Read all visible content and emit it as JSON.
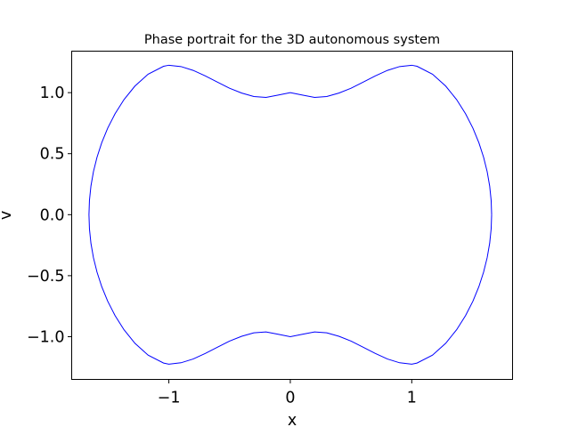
{
  "chart_data": {
    "type": "line",
    "title": "Phase portrait for the 3D autonomous system",
    "xlabel": "x",
    "ylabel": "v",
    "xlim": [
      -1.8,
      1.83
    ],
    "ylim": [
      -1.35,
      1.34
    ],
    "grid": false,
    "xticks": [
      {
        "value": -1,
        "label": "−1"
      },
      {
        "value": 0,
        "label": "0"
      },
      {
        "value": 1,
        "label": "1"
      }
    ],
    "yticks": [
      {
        "value": 1.0,
        "label": "1.0"
      },
      {
        "value": 0.5,
        "label": "0.5"
      },
      {
        "value": 0.0,
        "label": "0.0"
      },
      {
        "value": -0.5,
        "label": "−0.5"
      },
      {
        "value": -1.0,
        "label": "−1.0"
      }
    ],
    "series": [
      {
        "color": "#0000ff",
        "points": [
          [
            1.6578,
            0.0
          ],
          [
            1.6537,
            0.1173
          ],
          [
            1.6415,
            0.2348
          ],
          [
            1.6209,
            0.3527
          ],
          [
            1.5915,
            0.471
          ],
          [
            1.5527,
            0.5898
          ],
          [
            1.5036,
            0.7088
          ],
          [
            1.443,
            0.8271
          ],
          [
            1.3691,
            0.9433
          ],
          [
            1.2795,
            1.0539
          ],
          [
            1.1709,
            1.1513
          ],
          [
            1.0436,
            1.2159
          ],
          [
            1.0,
            1.2247
          ],
          [
            0.9,
            1.2137
          ],
          [
            0.8,
            1.1826
          ],
          [
            0.7,
            1.1375
          ],
          [
            0.6,
            1.086
          ],
          [
            0.5,
            1.0358
          ],
          [
            0.4,
            0.9964
          ],
          [
            0.3,
            0.9685
          ],
          [
            0.2,
            0.9612
          ],
          [
            0.1,
            0.9801
          ],
          [
            0.0,
            1.0
          ],
          [
            -0.1,
            0.9801
          ],
          [
            -0.2,
            0.9612
          ],
          [
            -0.3,
            0.9685
          ],
          [
            -0.4,
            0.9964
          ],
          [
            -0.5,
            1.0358
          ],
          [
            -0.6,
            1.086
          ],
          [
            -0.7,
            1.1375
          ],
          [
            -0.8,
            1.1826
          ],
          [
            -0.9,
            1.2137
          ],
          [
            -1.0,
            1.2247
          ],
          [
            -1.0436,
            1.2159
          ],
          [
            -1.1709,
            1.1513
          ],
          [
            -1.2795,
            1.0539
          ],
          [
            -1.3691,
            0.9433
          ],
          [
            -1.443,
            0.8271
          ],
          [
            -1.5036,
            0.7088
          ],
          [
            -1.5527,
            0.5898
          ],
          [
            -1.5915,
            0.471
          ],
          [
            -1.6209,
            0.3527
          ],
          [
            -1.6415,
            0.2348
          ],
          [
            -1.6537,
            0.1173
          ],
          [
            -1.6578,
            0.0
          ],
          [
            -1.6537,
            -0.1173
          ],
          [
            -1.6415,
            -0.2348
          ],
          [
            -1.6209,
            -0.3527
          ],
          [
            -1.5915,
            -0.471
          ],
          [
            -1.5527,
            -0.5898
          ],
          [
            -1.5036,
            -0.7088
          ],
          [
            -1.443,
            -0.8271
          ],
          [
            -1.3691,
            -0.9433
          ],
          [
            -1.2795,
            -1.0539
          ],
          [
            -1.1709,
            -1.1513
          ],
          [
            -1.0436,
            -1.2159
          ],
          [
            -1.0,
            -1.2247
          ],
          [
            -0.9,
            -1.2137
          ],
          [
            -0.8,
            -1.1826
          ],
          [
            -0.7,
            -1.1375
          ],
          [
            -0.6,
            -1.086
          ],
          [
            -0.5,
            -1.0358
          ],
          [
            -0.4,
            -0.9964
          ],
          [
            -0.3,
            -0.9685
          ],
          [
            -0.2,
            -0.9612
          ],
          [
            -0.1,
            -0.9801
          ],
          [
            0.0,
            -1.0
          ],
          [
            0.1,
            -0.9801
          ],
          [
            0.2,
            -0.9612
          ],
          [
            0.3,
            -0.9685
          ],
          [
            0.4,
            -0.9964
          ],
          [
            0.5,
            -1.0358
          ],
          [
            0.6,
            -1.086
          ],
          [
            0.7,
            -1.1375
          ],
          [
            0.8,
            -1.1826
          ],
          [
            0.9,
            -1.2137
          ],
          [
            1.0,
            -1.2247
          ],
          [
            1.0436,
            -1.2159
          ],
          [
            1.1709,
            -1.1513
          ],
          [
            1.2795,
            -1.0539
          ],
          [
            1.3691,
            -0.9433
          ],
          [
            1.443,
            -0.8271
          ],
          [
            1.5036,
            -0.7088
          ],
          [
            1.5527,
            -0.5898
          ],
          [
            1.5915,
            -0.471
          ],
          [
            1.6209,
            -0.3527
          ],
          [
            1.6415,
            -0.2348
          ],
          [
            1.6537,
            -0.1173
          ],
          [
            1.6578,
            0.0
          ]
        ]
      }
    ]
  }
}
